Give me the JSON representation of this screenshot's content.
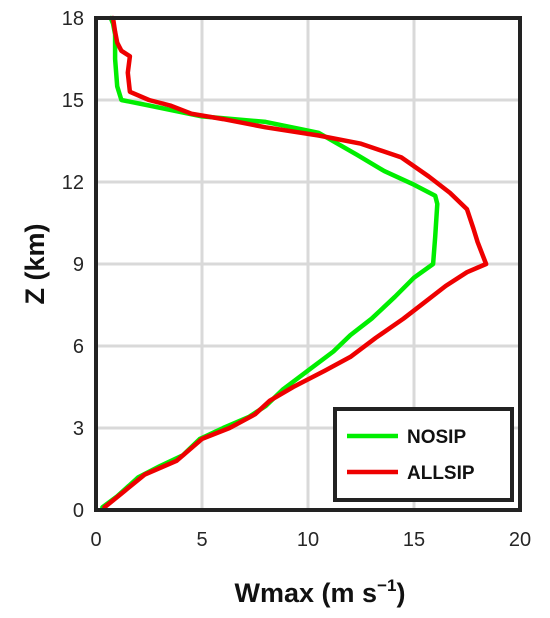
{
  "chart_data": {
    "type": "line",
    "xlabel": "Wmax (m s",
    "xlabel_sup": "−1",
    "xlabel_close": ")",
    "ylabel": "Z (km)",
    "xlim": [
      0,
      20
    ],
    "ylim": [
      0,
      18
    ],
    "xticks": [
      0,
      5,
      10,
      15,
      20
    ],
    "yticks": [
      0,
      3,
      6,
      9,
      12,
      15,
      18
    ],
    "grid": true,
    "legend_position": "bottom-right",
    "series": [
      {
        "name": "NOSIP",
        "color": "#00ee00",
        "points": [
          [
            0.3,
            0.1
          ],
          [
            1.0,
            0.5
          ],
          [
            2.0,
            1.2
          ],
          [
            3.0,
            1.6
          ],
          [
            4.1,
            2.0
          ],
          [
            4.9,
            2.6
          ],
          [
            6.0,
            3.0
          ],
          [
            7.2,
            3.4
          ],
          [
            8.0,
            3.8
          ],
          [
            8.8,
            4.4
          ],
          [
            10.0,
            5.1
          ],
          [
            11.2,
            5.8
          ],
          [
            12.0,
            6.4
          ],
          [
            13.0,
            7.0
          ],
          [
            14.1,
            7.8
          ],
          [
            15.0,
            8.5
          ],
          [
            15.9,
            9.0
          ],
          [
            16.0,
            10.0
          ],
          [
            16.1,
            11.2
          ],
          [
            16.0,
            11.5
          ],
          [
            15.0,
            11.9
          ],
          [
            13.6,
            12.4
          ],
          [
            12.3,
            13.0
          ],
          [
            10.5,
            13.8
          ],
          [
            8.0,
            14.2
          ],
          [
            5.0,
            14.4
          ],
          [
            2.5,
            14.8
          ],
          [
            1.2,
            15.0
          ],
          [
            1.0,
            15.5
          ],
          [
            0.9,
            16.5
          ],
          [
            0.9,
            17.4
          ],
          [
            0.8,
            17.8
          ],
          [
            0.7,
            18.0
          ]
        ]
      },
      {
        "name": "ALLSIP",
        "color": "#ee0000",
        "points": [
          [
            0.4,
            0.1
          ],
          [
            1.2,
            0.6
          ],
          [
            2.3,
            1.3
          ],
          [
            3.8,
            1.8
          ],
          [
            5.0,
            2.6
          ],
          [
            6.3,
            3.0
          ],
          [
            7.5,
            3.5
          ],
          [
            8.2,
            4.0
          ],
          [
            9.3,
            4.5
          ],
          [
            10.8,
            5.1
          ],
          [
            12.0,
            5.6
          ],
          [
            13.2,
            6.3
          ],
          [
            14.5,
            7.0
          ],
          [
            15.5,
            7.6
          ],
          [
            16.5,
            8.2
          ],
          [
            17.5,
            8.7
          ],
          [
            18.4,
            9.0
          ],
          [
            18.0,
            9.8
          ],
          [
            17.8,
            10.3
          ],
          [
            17.5,
            11.0
          ],
          [
            16.7,
            11.6
          ],
          [
            15.7,
            12.2
          ],
          [
            14.4,
            12.9
          ],
          [
            12.5,
            13.4
          ],
          [
            10.5,
            13.7
          ],
          [
            8.0,
            14.0
          ],
          [
            6.0,
            14.3
          ],
          [
            4.5,
            14.5
          ],
          [
            3.5,
            14.8
          ],
          [
            2.5,
            15.0
          ],
          [
            1.6,
            15.3
          ],
          [
            1.5,
            16.0
          ],
          [
            1.6,
            16.6
          ],
          [
            1.2,
            16.8
          ],
          [
            1.0,
            17.1
          ],
          [
            0.9,
            17.5
          ],
          [
            0.8,
            18.0
          ]
        ]
      }
    ]
  }
}
